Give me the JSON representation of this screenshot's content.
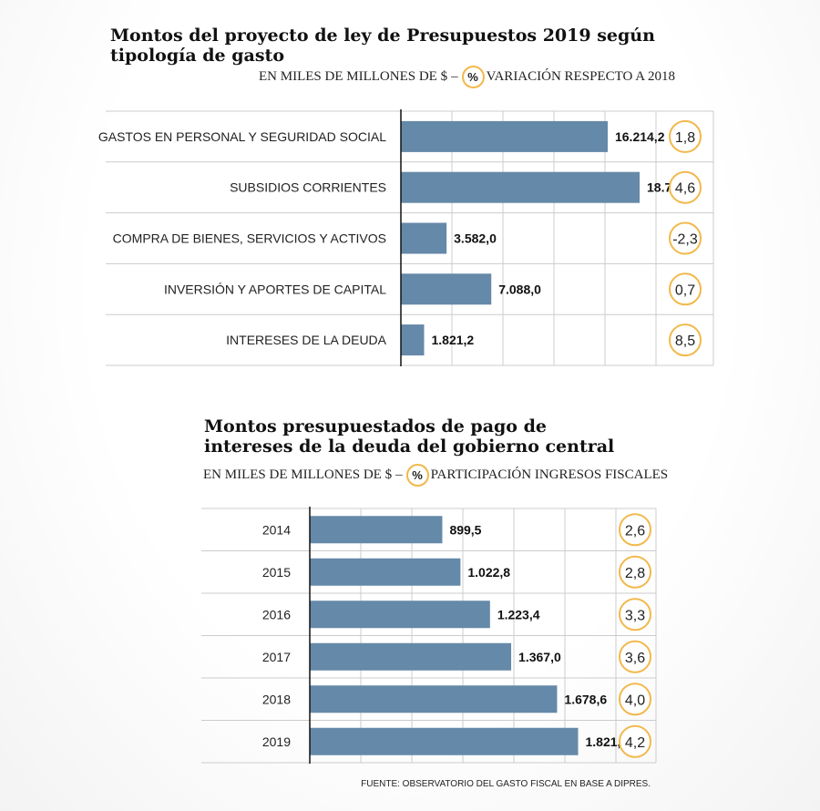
{
  "chart_data": [
    {
      "type": "bar",
      "orientation": "horizontal",
      "title": "Montos del proyecto de ley de Presupuestos 2019 según tipología de gasto",
      "subtitle_left": "EN MILES DE MILLONES DE $",
      "pct_symbol": "%",
      "subtitle_right": "VARIACIÓN RESPECTO A 2018",
      "categories": [
        "GASTOS EN PERSONAL Y SEGURIDAD SOCIAL",
        "SUBSIDIOS CORRIENTES",
        "COMPRA DE BIENES, SERVICIOS Y ACTIVOS",
        "INVERSIÓN Y APORTES DE CAPITAL",
        "INTERESES DE LA DEUDA"
      ],
      "values": [
        16214.2,
        18715.8,
        3582.0,
        7088.0,
        1821.2
      ],
      "value_labels": [
        "16.214,2",
        "18.715,8",
        "3.582,0",
        "7.088,0",
        "1.821,2"
      ],
      "pct_change": [
        "1,8",
        "4,6",
        "-2,3",
        "0,7",
        "8,5"
      ],
      "xlim": [
        0,
        24500
      ],
      "grid": true,
      "colors": {
        "bar": "#6589a8",
        "circle": "#f2b84b",
        "grid": "#cccccc"
      }
    },
    {
      "type": "bar",
      "orientation": "horizontal",
      "title": "Montos presupuestados de pago de intereses de la deuda del gobierno central",
      "subtitle_left": "EN MILES DE MILLONES DE $",
      "pct_symbol": "%",
      "subtitle_right": "PARTICIPACIÓN INGRESOS FISCALES",
      "categories": [
        "2014",
        "2015",
        "2016",
        "2017",
        "2018",
        "2019"
      ],
      "values": [
        899.5,
        1022.8,
        1223.4,
        1367.0,
        1678.6,
        1821.2
      ],
      "value_labels": [
        "899,5",
        "1.022,8",
        "1.223,4",
        "1.367,0",
        "1.678,6",
        "1.821,2"
      ],
      "pct_share": [
        "2,6",
        "2,8",
        "3,3",
        "3,6",
        "4,0",
        "4,2"
      ],
      "xlim": [
        0,
        2350
      ],
      "grid": true,
      "colors": {
        "bar": "#6589a8",
        "circle": "#f2b84b",
        "grid": "#cccccc"
      }
    }
  ],
  "source": "FUENTE: OBSERVATORIO DEL GASTO FISCAL EN BASE A DIPRES."
}
